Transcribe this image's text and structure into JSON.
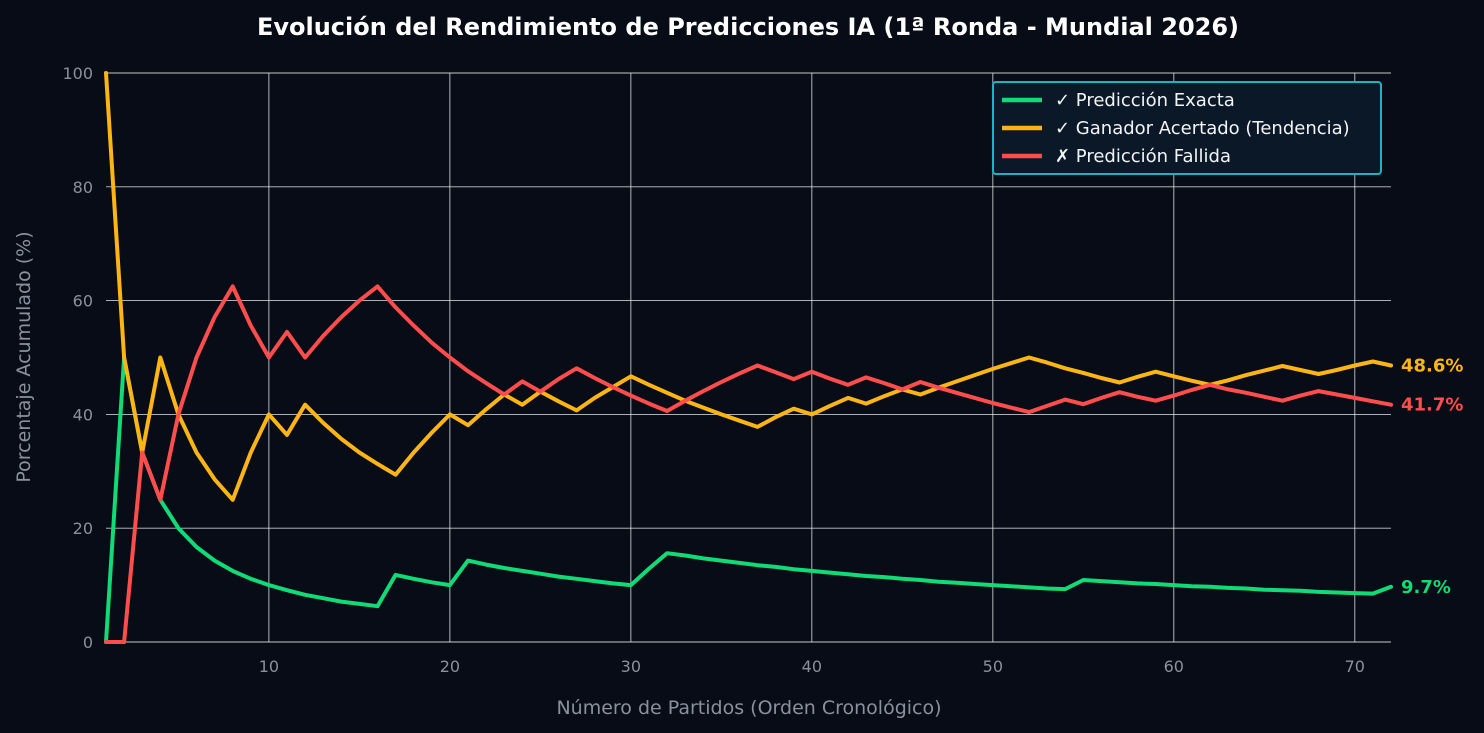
{
  "chart_data": {
    "type": "line",
    "title": "Evolución del Rendimiento de Predicciones IA (1ª Ronda - Mundial 2026)",
    "xlabel": "Número de Partidos (Orden Cronológico)",
    "ylabel": "Porcentaje Acumulado (%)",
    "xlim": [
      1,
      72
    ],
    "ylim": [
      0,
      100
    ],
    "xticks": [
      10,
      20,
      30,
      40,
      50,
      60,
      70
    ],
    "yticks": [
      0,
      20,
      40,
      60,
      80,
      100
    ],
    "grid": true,
    "legend_position": "top-right",
    "x": [
      1,
      2,
      3,
      4,
      5,
      6,
      7,
      8,
      9,
      10,
      11,
      12,
      13,
      14,
      15,
      16,
      17,
      18,
      19,
      20,
      21,
      22,
      23,
      24,
      25,
      26,
      27,
      28,
      29,
      30,
      31,
      32,
      33,
      34,
      35,
      36,
      37,
      38,
      39,
      40,
      41,
      42,
      43,
      44,
      45,
      46,
      47,
      48,
      49,
      50,
      51,
      52,
      53,
      54,
      55,
      56,
      57,
      58,
      59,
      60,
      61,
      62,
      63,
      64,
      65,
      66,
      67,
      68,
      69,
      70,
      71,
      72
    ],
    "series": [
      {
        "name": "✓ Predicción Exacta",
        "color": "#10db77",
        "end_label": "9.7%",
        "values": [
          0,
          50,
          33.3,
          25,
          20,
          16.7,
          14.3,
          12.5,
          11.1,
          10,
          9.1,
          8.3,
          7.7,
          7.1,
          6.7,
          6.3,
          11.8,
          11.1,
          10.5,
          10,
          14.3,
          13.6,
          13,
          12.5,
          12,
          11.5,
          11.1,
          10.7,
          10.3,
          10,
          12.9,
          15.6,
          15.2,
          14.7,
          14.3,
          13.9,
          13.5,
          13.2,
          12.8,
          12.5,
          12.2,
          11.9,
          11.6,
          11.4,
          11.1,
          10.9,
          10.6,
          10.4,
          10.2,
          10,
          9.8,
          9.6,
          9.4,
          9.3,
          10.9,
          10.7,
          10.5,
          10.3,
          10.2,
          10,
          9.8,
          9.7,
          9.5,
          9.4,
          9.2,
          9.1,
          9,
          8.8,
          8.7,
          8.6,
          8.5,
          9.7
        ]
      },
      {
        "name": "✓ Ganador Acertado (Tendencia)",
        "color": "#fdb515",
        "end_label": "48.6%",
        "values": [
          100,
          50,
          33.3,
          50,
          40,
          33.3,
          28.6,
          25,
          33.3,
          40,
          36.4,
          41.7,
          38.5,
          35.7,
          33.3,
          31.3,
          29.4,
          33.3,
          36.8,
          40,
          38.1,
          40.9,
          43.5,
          41.7,
          44,
          42.3,
          40.7,
          42.9,
          44.8,
          46.7,
          45.2,
          43.8,
          42.4,
          41.2,
          40,
          38.9,
          37.8,
          39.5,
          41,
          40,
          41.5,
          42.9,
          41.9,
          43.2,
          44.4,
          43.5,
          44.7,
          45.8,
          46.9,
          48,
          49,
          50,
          49.1,
          48.1,
          47.3,
          46.4,
          45.6,
          46.6,
          47.5,
          46.7,
          45.9,
          45.2,
          46,
          46.9,
          47.7,
          48.5,
          47.8,
          47.1,
          47.8,
          48.6,
          49.3,
          48.6
        ]
      },
      {
        "name": "✗ Predicción Fallida",
        "color": "#ff4d4d",
        "end_label": "41.7%",
        "values": [
          0,
          0,
          33.3,
          25,
          40,
          50,
          57.1,
          62.5,
          55.6,
          50,
          54.5,
          50,
          53.8,
          57.1,
          60,
          62.5,
          58.8,
          55.6,
          52.6,
          50,
          47.6,
          45.5,
          43.5,
          45.8,
          44,
          46.2,
          48.1,
          46.4,
          44.8,
          43.3,
          41.9,
          40.6,
          42.4,
          44.1,
          45.7,
          47.2,
          48.6,
          47.4,
          46.2,
          47.5,
          46.3,
          45.2,
          46.5,
          45.5,
          44.4,
          45.7,
          44.7,
          43.8,
          42.9,
          42,
          41.2,
          40.4,
          41.5,
          42.6,
          41.8,
          42.9,
          43.9,
          43.1,
          42.4,
          43.3,
          44.3,
          45.2,
          44.4,
          43.8,
          43.1,
          42.4,
          43.3,
          44.1,
          43.5,
          42.9,
          42.3,
          41.7
        ]
      }
    ]
  }
}
